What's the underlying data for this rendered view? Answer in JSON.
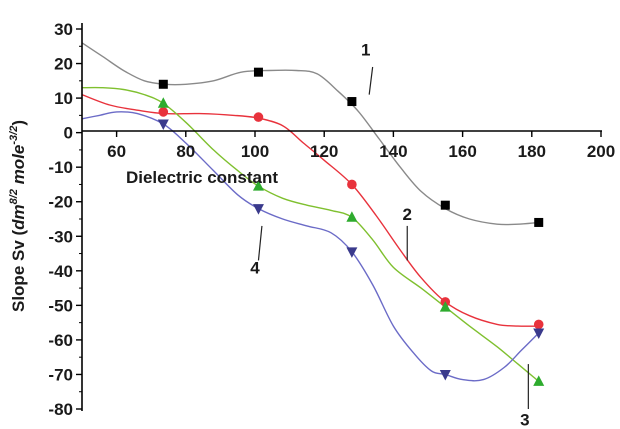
{
  "chart_data": {
    "type": "scatter",
    "xlabel": "Dielectric constant",
    "ylabel_parts": [
      "Slope Sv (",
      "dm",
      "8/2",
      " mole",
      "-3/2",
      ")"
    ],
    "xlim": [
      50,
      200
    ],
    "ylim": [
      -80,
      30
    ],
    "x_ticks": [
      60,
      80,
      100,
      120,
      140,
      160,
      180,
      200
    ],
    "y_ticks": [
      30,
      20,
      10,
      0,
      -10,
      -20,
      -30,
      -40,
      -50,
      -60,
      -70,
      -80
    ],
    "grid": false,
    "series": [
      {
        "name": "1",
        "color": "#000000",
        "line_color": "#8a8a8a",
        "marker": "square",
        "x": [
          73.5,
          101,
          128,
          155,
          182
        ],
        "y": [
          14,
          17.5,
          9,
          -21,
          -26
        ],
        "curve": [
          [
            50,
            26
          ],
          [
            56,
            22
          ],
          [
            62,
            18
          ],
          [
            68,
            15
          ],
          [
            74,
            14
          ],
          [
            80,
            14
          ],
          [
            88,
            15
          ],
          [
            96,
            17.5
          ],
          [
            104,
            18
          ],
          [
            112,
            18
          ],
          [
            118,
            17
          ],
          [
            124,
            12
          ],
          [
            130,
            6
          ],
          [
            136,
            -2
          ],
          [
            142,
            -10
          ],
          [
            148,
            -17
          ],
          [
            155,
            -22
          ],
          [
            162,
            -25
          ],
          [
            170,
            -26.5
          ],
          [
            176,
            -26.5
          ],
          [
            182,
            -26
          ]
        ]
      },
      {
        "name": "2",
        "color": "#e8323c",
        "line_color": "#e8323c",
        "marker": "circle",
        "x": [
          73.5,
          101,
          128,
          155,
          182
        ],
        "y": [
          6,
          4.5,
          -15,
          -49,
          -55.5
        ],
        "curve": [
          [
            50,
            11
          ],
          [
            58,
            8
          ],
          [
            66,
            6.5
          ],
          [
            74,
            5.5
          ],
          [
            84,
            5.5
          ],
          [
            94,
            5
          ],
          [
            101,
            4.2
          ],
          [
            108,
            2
          ],
          [
            114,
            -3
          ],
          [
            120,
            -8
          ],
          [
            128,
            -15
          ],
          [
            135,
            -24
          ],
          [
            142,
            -34
          ],
          [
            148,
            -42
          ],
          [
            155,
            -49
          ],
          [
            162,
            -53
          ],
          [
            170,
            -55.5
          ],
          [
            176,
            -56
          ],
          [
            182,
            -56
          ]
        ]
      },
      {
        "name": "3",
        "color": "#2eab2e",
        "line_color": "#7fc02f",
        "marker": "triangle-up",
        "x": [
          73.5,
          101,
          128,
          155,
          182
        ],
        "y": [
          8.5,
          -15.5,
          -24.5,
          -50.5,
          -72
        ],
        "curve": [
          [
            50,
            13
          ],
          [
            56,
            13
          ],
          [
            62,
            12.5
          ],
          [
            68,
            11
          ],
          [
            73.5,
            8.5
          ],
          [
            80,
            3
          ],
          [
            88,
            -5
          ],
          [
            95,
            -11
          ],
          [
            101,
            -15.5
          ],
          [
            108,
            -19
          ],
          [
            115,
            -21
          ],
          [
            122,
            -22.5
          ],
          [
            128,
            -24.5
          ],
          [
            134,
            -31
          ],
          [
            140,
            -39
          ],
          [
            148,
            -45
          ],
          [
            155,
            -50.5
          ],
          [
            162,
            -56
          ],
          [
            170,
            -62
          ],
          [
            176,
            -67
          ],
          [
            182,
            -72
          ]
        ]
      },
      {
        "name": "4",
        "color": "#3a3a8c",
        "line_color": "#6b6bc7",
        "marker": "triangle-down",
        "x": [
          73.5,
          101,
          128,
          155,
          182
        ],
        "y": [
          2.5,
          -22,
          -34.5,
          -70,
          -58
        ],
        "curve": [
          [
            50,
            4
          ],
          [
            55,
            5
          ],
          [
            60,
            6
          ],
          [
            66,
            5.5
          ],
          [
            73.5,
            2.5
          ],
          [
            80,
            -3
          ],
          [
            88,
            -11
          ],
          [
            95,
            -18
          ],
          [
            101,
            -22
          ],
          [
            108,
            -25
          ],
          [
            115,
            -27
          ],
          [
            122,
            -29
          ],
          [
            128,
            -34.5
          ],
          [
            134,
            -44
          ],
          [
            140,
            -56
          ],
          [
            146,
            -64
          ],
          [
            151,
            -69
          ],
          [
            155,
            -70
          ],
          [
            160,
            -71.5
          ],
          [
            166,
            -71.5
          ],
          [
            172,
            -68
          ],
          [
            177,
            -63
          ],
          [
            182,
            -58
          ]
        ]
      }
    ],
    "annotations": [
      {
        "text": "1",
        "x": 132,
        "y": 24,
        "lx1": 134,
        "ly1": 19,
        "lx2": 133,
        "ly2": 11
      },
      {
        "text": "2",
        "x": 144,
        "y": -23.5,
        "lx1": 144,
        "ly1": -27,
        "lx2": 144,
        "ly2": -37
      },
      {
        "text": "4",
        "x": 100,
        "y": -39,
        "lx1": 101,
        "ly1": -37,
        "lx2": 102,
        "ly2": -27
      },
      {
        "text": "3",
        "x": 178,
        "y": -83,
        "lx1": 179,
        "ly1": -80,
        "lx2": 179,
        "ly2": -67
      }
    ]
  }
}
